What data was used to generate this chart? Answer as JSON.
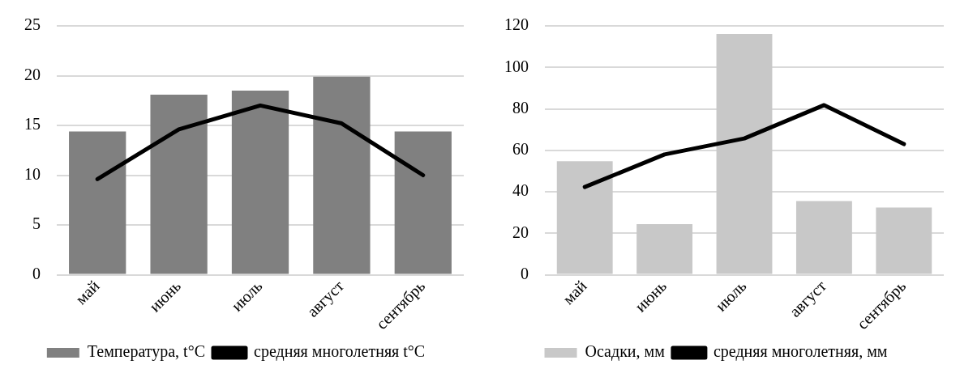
{
  "chart_data": [
    {
      "type": "bar",
      "categories": [
        "май",
        "июнь",
        "июль",
        "август",
        "сентябрь"
      ],
      "series": [
        {
          "name": "Температура, t°C",
          "color": "#808080",
          "values": [
            14.4,
            18.1,
            18.5,
            19.9,
            14.4
          ]
        },
        {
          "name": "средняя многолетняя t°C",
          "type": "line",
          "color": "#000000",
          "values": [
            9.6,
            14.6,
            17.0,
            15.2,
            10.0
          ]
        }
      ],
      "ylim": [
        0,
        25
      ],
      "yticks": [
        0,
        5,
        10,
        15,
        20,
        25
      ],
      "grid": "y",
      "legend": "bottom"
    },
    {
      "type": "bar",
      "categories": [
        "май",
        "июнь",
        "июль",
        "август",
        "сентябрь"
      ],
      "series": [
        {
          "name": "Осадки, мм",
          "color": "#c8c8c8",
          "values": [
            54.7,
            24.4,
            116.1,
            35.5,
            32.4
          ]
        },
        {
          "name": "средняя многолетняя, мм",
          "type": "line",
          "color": "#000000",
          "values": [
            42.3,
            58,
            65.7,
            81.8,
            63
          ]
        }
      ],
      "ylim": [
        0,
        120
      ],
      "yticks": [
        0,
        20,
        40,
        60,
        80,
        100,
        120
      ],
      "grid": "y",
      "legend": "bottom"
    }
  ]
}
